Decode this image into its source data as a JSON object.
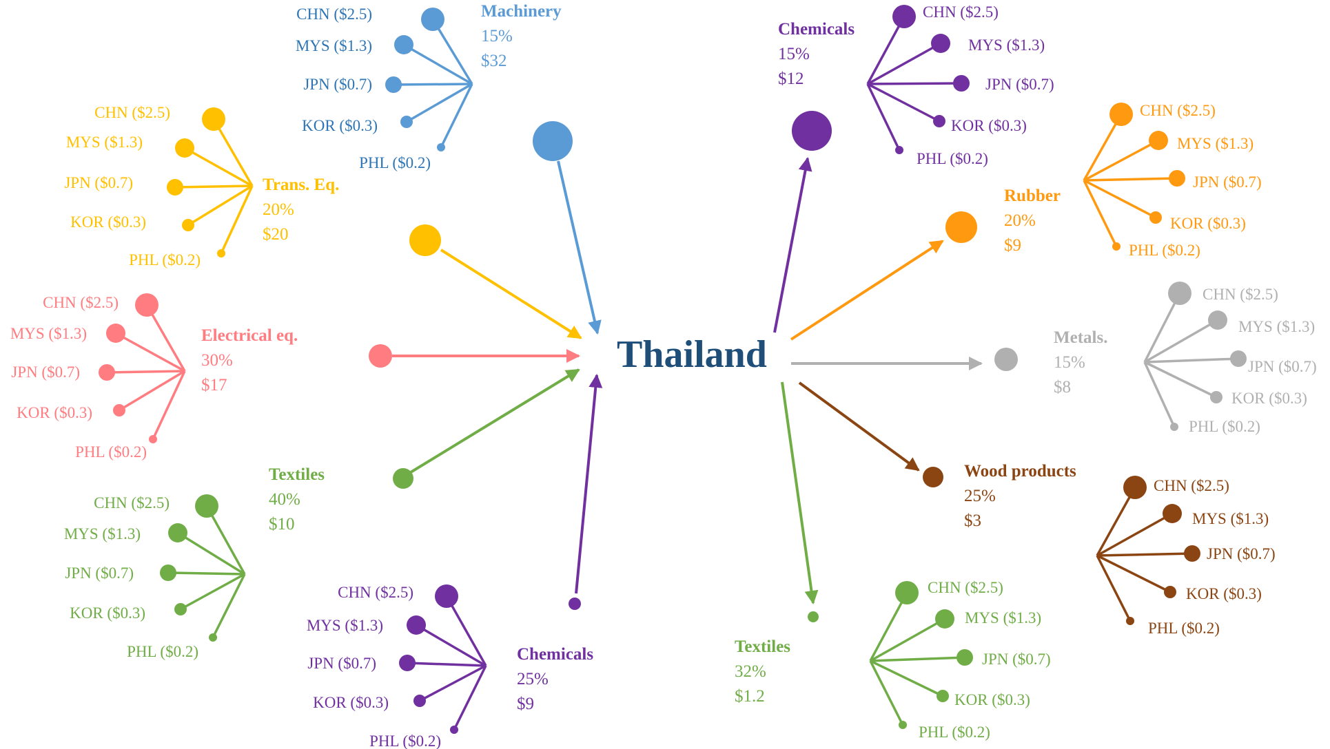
{
  "center": {
    "label": "Thailand",
    "color": "#1f4e79"
  },
  "groups": [
    {
      "id": "machinery",
      "direction": "import",
      "color": "#5b9bd5",
      "label": "Machinery",
      "share": "15%",
      "value": "$32",
      "partners": [
        "CHN ($2.5)",
        "MYS ($1.3)",
        "JPN ($0.7)",
        "KOR ($0.3)",
        "PHL ($0.2)"
      ],
      "partner_label_color": "#2e75b6"
    },
    {
      "id": "trans-eq",
      "direction": "import",
      "color": "#ffc000",
      "label": "Trans. Eq.",
      "share": "20%",
      "value": "$20",
      "partners": [
        "CHN ($2.5)",
        "MYS ($1.3)",
        "JPN ($0.7)",
        "KOR ($0.3)",
        "PHL ($0.2)"
      ],
      "partner_label_color": "#ffc000"
    },
    {
      "id": "electrical-eq",
      "direction": "import",
      "color": "#ff7c80",
      "label": "Electrical eq.",
      "share": "30%",
      "value": "$17",
      "partners": [
        "CHN ($2.5)",
        "MYS ($1.3)",
        "JPN ($0.7)",
        "KOR ($0.3)",
        "PHL ($0.2)"
      ],
      "partner_label_color": "#ff7c80"
    },
    {
      "id": "textiles-import",
      "direction": "import",
      "color": "#70ad47",
      "label": "Textiles",
      "share": "40%",
      "value": "$10",
      "partners": [
        "CHN ($2.5)",
        "MYS ($1.3)",
        "JPN ($0.7)",
        "KOR ($0.3)",
        "PHL ($0.2)"
      ],
      "partner_label_color": "#70ad47"
    },
    {
      "id": "chemicals-import",
      "direction": "import",
      "color": "#7030a0",
      "label": "Chemicals",
      "share": "25%",
      "value": "$9",
      "partners": [
        "CHN ($2.5)",
        "MYS ($1.3)",
        "JPN ($0.7)",
        "KOR ($0.3)",
        "PHL ($0.2)"
      ],
      "partner_label_color": "#7030a0"
    },
    {
      "id": "chemicals-export",
      "direction": "export",
      "color": "#7030a0",
      "label": "Chemicals",
      "share": "15%",
      "value": "$12",
      "partners": [
        "CHN ($2.5)",
        "MYS ($1.3)",
        "JPN ($0.7)",
        "KOR ($0.3)",
        "PHL ($0.2)"
      ],
      "partner_label_color": "#7030a0"
    },
    {
      "id": "rubber",
      "direction": "export",
      "color": "#ff9910",
      "label": "Rubber",
      "share": "20%",
      "value": "$9",
      "partners": [
        "CHN ($2.5)",
        "MYS ($1.3)",
        "JPN ($0.7)",
        "KOR ($0.3)",
        "PHL ($0.2)"
      ],
      "partner_label_color": "#ff9910"
    },
    {
      "id": "metals",
      "direction": "export",
      "color": "#b0b0b0",
      "label": "Metals.",
      "share": "15%",
      "value": "$8",
      "partners": [
        "CHN ($2.5)",
        "MYS ($1.3)",
        "JPN ($0.7)",
        "KOR ($0.3)",
        "PHL ($0.2)"
      ],
      "partner_label_color": "#b0b0b0"
    },
    {
      "id": "wood-products",
      "direction": "export",
      "color": "#8b4513",
      "label": "Wood products",
      "share": "25%",
      "value": "$3",
      "partners": [
        "CHN ($2.5)",
        "MYS ($1.3)",
        "JPN ($0.7)",
        "KOR ($0.3)",
        "PHL ($0.2)"
      ],
      "partner_label_color": "#8b4513"
    },
    {
      "id": "textiles-export",
      "direction": "export",
      "color": "#70ad47",
      "label": "Textiles",
      "share": "32%",
      "value": "$1.2",
      "partners": [
        "CHN ($2.5)",
        "MYS ($1.3)",
        "JPN ($0.7)",
        "KOR ($0.3)",
        "PHL ($0.2)"
      ],
      "partner_label_color": "#70ad47"
    }
  ]
}
